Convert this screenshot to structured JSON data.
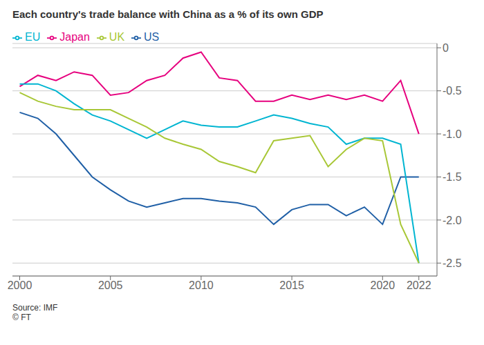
{
  "chart_data": {
    "type": "line",
    "title": "Each country's trade balance with China as a % of its own GDP",
    "annotations": [
      "Source: IMF",
      "© FT"
    ],
    "x": [
      2000,
      2001,
      2002,
      2003,
      2004,
      2005,
      2006,
      2007,
      2008,
      2009,
      2010,
      2011,
      2012,
      2013,
      2014,
      2015,
      2016,
      2017,
      2018,
      2019,
      2020,
      2021,
      2022
    ],
    "series": [
      {
        "name": "US",
        "color": "#1f5fa6",
        "values": [
          -0.75,
          -0.82,
          -1.0,
          -1.25,
          -1.5,
          -1.65,
          -1.78,
          -1.85,
          -1.8,
          -1.75,
          -1.75,
          -1.78,
          -1.8,
          -1.85,
          -2.05,
          -1.88,
          -1.82,
          -1.82,
          -1.95,
          -1.85,
          -2.05,
          -1.5,
          -1.5
        ]
      },
      {
        "name": "Japan",
        "color": "#e6007e",
        "values": [
          -0.45,
          -0.32,
          -0.38,
          -0.28,
          -0.32,
          -0.55,
          -0.52,
          -0.38,
          -0.32,
          -0.12,
          -0.05,
          -0.35,
          -0.38,
          -0.62,
          -0.62,
          -0.55,
          -0.6,
          -0.55,
          -0.6,
          -0.55,
          -0.62,
          -0.38,
          -1.0
        ]
      },
      {
        "name": "EU",
        "color": "#00b5d1",
        "values": [
          -0.42,
          -0.42,
          -0.5,
          -0.65,
          -0.78,
          -0.85,
          -0.95,
          -1.05,
          -0.95,
          -0.85,
          -0.9,
          -0.92,
          -0.92,
          -0.85,
          -0.78,
          -0.82,
          -0.88,
          -0.92,
          -1.12,
          -1.05,
          -1.05,
          -1.12,
          -2.5
        ]
      },
      {
        "name": "UK",
        "color": "#a8c736",
        "values": [
          -0.52,
          -0.62,
          -0.68,
          -0.72,
          -0.72,
          -0.72,
          -0.82,
          -0.92,
          -1.05,
          -1.12,
          -1.18,
          -1.32,
          -1.38,
          -1.45,
          -1.08,
          -1.05,
          -1.02,
          -1.38,
          -1.18,
          -1.05,
          -1.08,
          -2.05,
          -2.5
        ]
      }
    ],
    "xlim": [
      1999.6,
      2023.0
    ],
    "xticks": [
      2000,
      2005,
      2010,
      2015,
      2020,
      2022
    ],
    "ylim": [
      -2.65,
      0.05
    ],
    "yticks": [
      0,
      -0.5,
      {
        "value": -1.0,
        "label": "-1.0"
      },
      -1.5,
      {
        "value": -2.0,
        "label": "-2.0"
      },
      -2.5
    ],
    "grid": true,
    "legend": "upper left"
  }
}
